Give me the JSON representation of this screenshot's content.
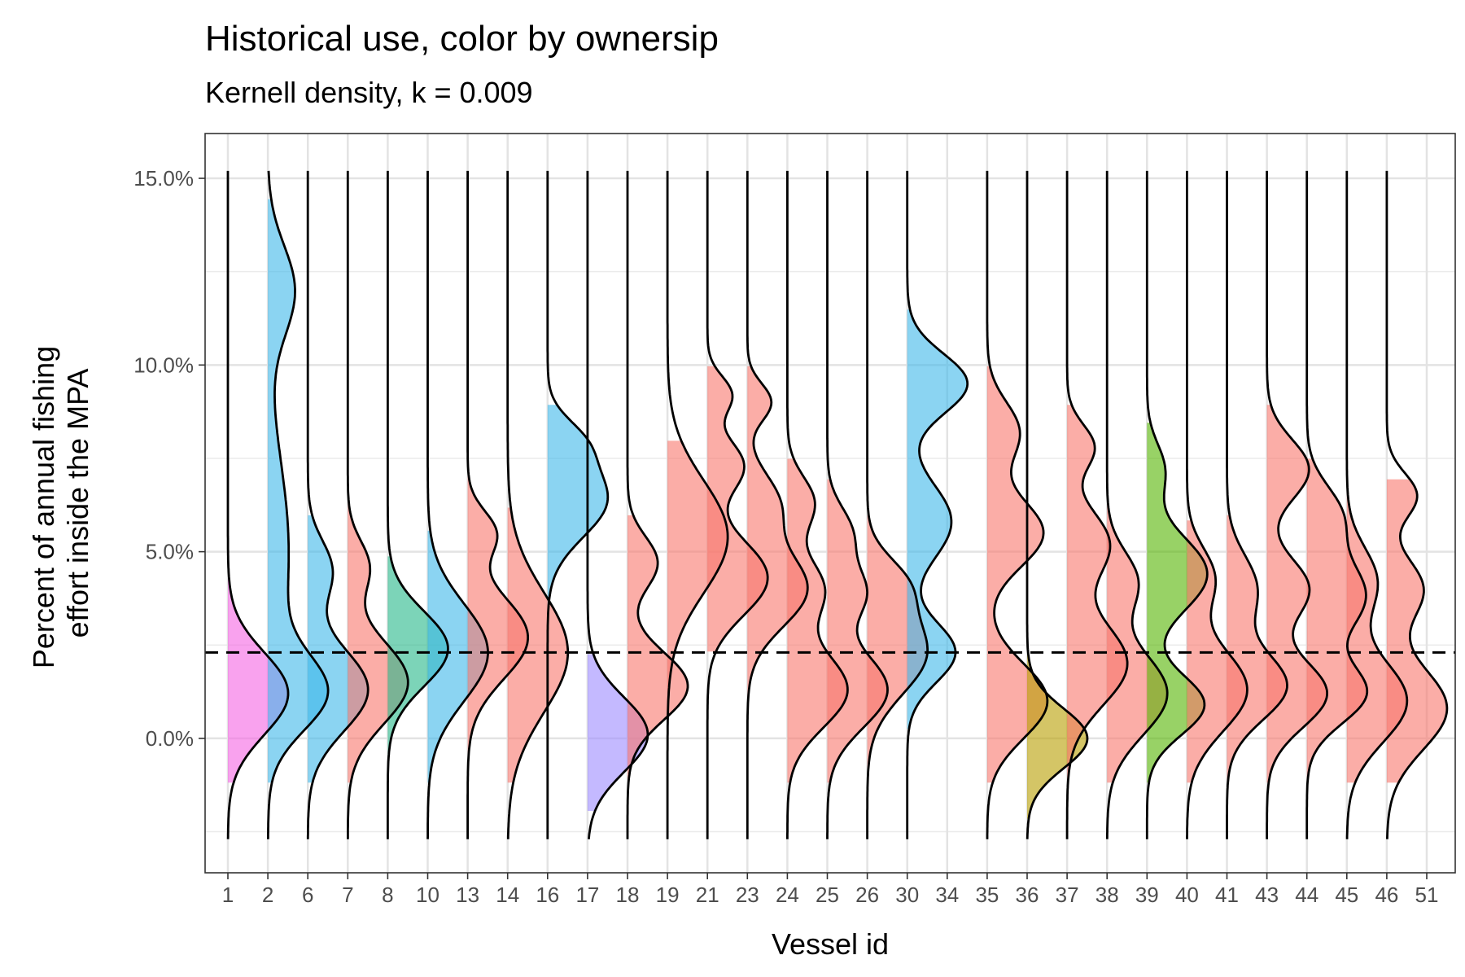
{
  "chart_data": {
    "type": "area",
    "title": "Historical use, color by ownersip",
    "subtitle": "Kernell density, k = 0.009",
    "xlabel": "Vessel id",
    "ylabel_lines": [
      "Percent of annual fishing",
      "effort inside the MPA"
    ],
    "categories": [
      "1",
      "2",
      "6",
      "7",
      "8",
      "10",
      "13",
      "14",
      "16",
      "17",
      "18",
      "19",
      "21",
      "23",
      "24",
      "25",
      "26",
      "30",
      "34",
      "35",
      "36",
      "37",
      "38",
      "39",
      "40",
      "41",
      "43",
      "44",
      "45",
      "46",
      "51"
    ],
    "y_ticks": [
      0,
      5,
      10,
      15
    ],
    "y_tick_labels": [
      "0.0%",
      "5.0%",
      "10.0%",
      "15.0%"
    ],
    "ylim": [
      -3.6,
      16.2
    ],
    "reference_line": {
      "y": 2.3,
      "style": "dashed"
    },
    "grid": true,
    "legend": "none",
    "colors": {
      "pink": "#F564E3",
      "blue": "#3DB7E9",
      "red": "#F8766D",
      "teal": "#25B889",
      "purple": "#9C8AFF",
      "olive": "#B79F00",
      "green": "#53B400"
    },
    "series": [
      {
        "vessel": "1",
        "color": "pink",
        "ymin": -2.7,
        "ymax": 15.2,
        "fill_min": -1.2,
        "fill_max": 4.7,
        "comps": [
          [
            1.2,
            1.1,
            1.0
          ]
        ]
      },
      {
        "vessel": "2",
        "color": "blue",
        "ymin": -2.7,
        "ymax": 15.2,
        "fill_min": -1.2,
        "fill_max": 14.5,
        "comps": [
          [
            1.2,
            1.0,
            0.9
          ],
          [
            5.0,
            2.5,
            0.35
          ],
          [
            12.0,
            1.2,
            0.45
          ]
        ]
      },
      {
        "vessel": "6",
        "color": "blue",
        "ymin": -2.7,
        "ymax": 15.2,
        "fill_min": -1.2,
        "fill_max": 6.0,
        "comps": [
          [
            1.3,
            1.1,
            1.0
          ],
          [
            4.5,
            0.8,
            0.4
          ]
        ]
      },
      {
        "vessel": "7",
        "color": "red",
        "ymin": -2.7,
        "ymax": 15.2,
        "fill_min": -1.2,
        "fill_max": 6.9,
        "comps": [
          [
            1.5,
            1.1,
            1.0
          ],
          [
            4.6,
            0.7,
            0.35
          ]
        ]
      },
      {
        "vessel": "8",
        "color": "teal",
        "ymin": -2.7,
        "ymax": 15.2,
        "fill_min": -1.2,
        "fill_max": 4.9,
        "comps": [
          [
            2.4,
            1.0,
            1.0
          ]
        ]
      },
      {
        "vessel": "10",
        "color": "blue",
        "ymin": -2.7,
        "ymax": 15.2,
        "fill_min": -1.2,
        "fill_max": 5.6,
        "comps": [
          [
            2.3,
            1.3,
            1.0
          ]
        ]
      },
      {
        "vessel": "13",
        "color": "red",
        "ymin": -2.7,
        "ymax": 15.2,
        "fill_min": -1.2,
        "fill_max": 7.5,
        "comps": [
          [
            2.7,
            1.1,
            1.0
          ],
          [
            5.5,
            0.6,
            0.45
          ]
        ]
      },
      {
        "vessel": "14",
        "color": "red",
        "ymin": -2.7,
        "ymax": 15.2,
        "fill_min": -1.2,
        "fill_max": 6.2,
        "comps": [
          [
            2.3,
            1.6,
            1.0
          ]
        ]
      },
      {
        "vessel": "16",
        "color": "blue",
        "ymin": -2.7,
        "ymax": 15.2,
        "fill_min": 2.3,
        "fill_max": 9.0,
        "comps": [
          [
            6.4,
            1.0,
            1.0
          ],
          [
            8.0,
            0.6,
            0.4
          ]
        ]
      },
      {
        "vessel": "17",
        "color": "purple",
        "ymin": -2.7,
        "ymax": 15.2,
        "fill_min": -2.0,
        "fill_max": 2.3,
        "comps": [
          [
            0.1,
            1.0,
            1.0
          ]
        ]
      },
      {
        "vessel": "18",
        "color": "red",
        "ymin": -2.7,
        "ymax": 15.2,
        "fill_min": -1.2,
        "fill_max": 6.0,
        "comps": [
          [
            1.4,
            0.9,
            1.0
          ],
          [
            4.7,
            0.7,
            0.5
          ]
        ]
      },
      {
        "vessel": "19",
        "color": "red",
        "ymin": -2.7,
        "ymax": 15.2,
        "fill_min": 0.5,
        "fill_max": 8.0,
        "comps": [
          [
            5.4,
            1.5,
            1.0
          ]
        ]
      },
      {
        "vessel": "21",
        "color": "red",
        "ymin": -2.7,
        "ymax": 15.2,
        "fill_min": 2.3,
        "fill_max": 10.0,
        "comps": [
          [
            4.3,
            1.0,
            1.0
          ],
          [
            7.3,
            0.7,
            0.6
          ],
          [
            9.2,
            0.5,
            0.4
          ]
        ]
      },
      {
        "vessel": "23",
        "color": "red",
        "ymin": -2.7,
        "ymax": 15.2,
        "fill_min": 0.5,
        "fill_max": 10.0,
        "comps": [
          [
            4.0,
            1.0,
            1.0
          ],
          [
            6.3,
            0.8,
            0.5
          ],
          [
            9.0,
            0.5,
            0.4
          ]
        ]
      },
      {
        "vessel": "24",
        "color": "red",
        "ymin": -2.7,
        "ymax": 15.2,
        "fill_min": -1.2,
        "fill_max": 7.5,
        "comps": [
          [
            1.3,
            1.0,
            1.0
          ],
          [
            4.0,
            0.8,
            0.6
          ],
          [
            6.3,
            0.7,
            0.45
          ]
        ]
      },
      {
        "vessel": "25",
        "color": "red",
        "ymin": -2.7,
        "ymax": 15.2,
        "fill_min": -1.2,
        "fill_max": 7.0,
        "comps": [
          [
            1.3,
            1.0,
            1.0
          ],
          [
            3.9,
            0.7,
            0.6
          ],
          [
            5.5,
            0.7,
            0.4
          ]
        ]
      },
      {
        "vessel": "26",
        "color": "red",
        "ymin": -2.7,
        "ymax": 15.2,
        "fill_min": -1.2,
        "fill_max": 6.0,
        "comps": [
          [
            2.3,
            1.1,
            1.0
          ],
          [
            4.2,
            0.7,
            0.5
          ]
        ]
      },
      {
        "vessel": "30",
        "color": "blue",
        "ymin": -2.7,
        "ymax": 15.2,
        "fill_min": 0.2,
        "fill_max": 11.5,
        "comps": [
          [
            2.3,
            0.8,
            0.6
          ],
          [
            5.8,
            1.0,
            0.55
          ],
          [
            9.5,
            0.8,
            0.75
          ]
        ]
      },
      {
        "vessel": "34",
        "color": "none",
        "ymin": null,
        "ymax": null,
        "fill_min": null,
        "fill_max": null,
        "comps": []
      },
      {
        "vessel": "35",
        "color": "red",
        "ymin": -2.7,
        "ymax": 15.2,
        "fill_min": -1.2,
        "fill_max": 10.0,
        "comps": [
          [
            1.0,
            1.0,
            0.75
          ],
          [
            5.5,
            0.9,
            0.7
          ],
          [
            8.2,
            0.8,
            0.4
          ]
        ]
      },
      {
        "vessel": "36",
        "color": "olive",
        "ymin": -2.7,
        "ymax": 15.2,
        "fill_min": -2.2,
        "fill_max": 2.3,
        "comps": [
          [
            0.0,
            0.8,
            1.0
          ]
        ]
      },
      {
        "vessel": "37",
        "color": "red",
        "ymin": -2.7,
        "ymax": 15.2,
        "fill_min": -1.2,
        "fill_max": 9.0,
        "comps": [
          [
            2.0,
            1.1,
            1.0
          ],
          [
            5.2,
            0.9,
            0.7
          ],
          [
            7.8,
            0.6,
            0.45
          ]
        ]
      },
      {
        "vessel": "38",
        "color": "red",
        "ymin": -2.7,
        "ymax": 15.2,
        "fill_min": -1.2,
        "fill_max": 6.5,
        "comps": [
          [
            1.2,
            1.1,
            1.0
          ],
          [
            4.2,
            0.8,
            0.5
          ]
        ]
      },
      {
        "vessel": "39",
        "color": "green",
        "ymin": -2.7,
        "ymax": 15.2,
        "fill_min": -1.2,
        "fill_max": 8.5,
        "comps": [
          [
            0.9,
            0.8,
            1.0
          ],
          [
            4.4,
            1.0,
            1.05
          ],
          [
            7.2,
            0.7,
            0.3
          ]
        ]
      },
      {
        "vessel": "40",
        "color": "red",
        "ymin": -2.7,
        "ymax": 15.2,
        "fill_min": -1.2,
        "fill_max": 5.9,
        "comps": [
          [
            1.3,
            1.1,
            1.0
          ],
          [
            4.3,
            0.8,
            0.45
          ]
        ]
      },
      {
        "vessel": "41",
        "color": "red",
        "ymin": -2.7,
        "ymax": 15.2,
        "fill_min": -1.2,
        "fill_max": 6.0,
        "comps": [
          [
            1.4,
            0.9,
            1.0
          ],
          [
            4.0,
            0.9,
            0.5
          ]
        ]
      },
      {
        "vessel": "43",
        "color": "red",
        "ymin": -2.7,
        "ymax": 15.2,
        "fill_min": -1.2,
        "fill_max": 9.0,
        "comps": [
          [
            1.2,
            0.9,
            1.0
          ],
          [
            4.0,
            0.8,
            0.7
          ],
          [
            7.2,
            0.8,
            0.7
          ]
        ]
      },
      {
        "vessel": "44",
        "color": "red",
        "ymin": -2.7,
        "ymax": 15.2,
        "fill_min": -1.2,
        "fill_max": 7.5,
        "comps": [
          [
            1.2,
            0.8,
            1.0
          ],
          [
            3.8,
            1.0,
            1.0
          ],
          [
            6.0,
            0.8,
            0.55
          ]
        ]
      },
      {
        "vessel": "45",
        "color": "red",
        "ymin": -2.7,
        "ymax": 15.2,
        "fill_min": -1.2,
        "fill_max": 7.0,
        "comps": [
          [
            1.0,
            1.1,
            1.0
          ],
          [
            4.2,
            0.9,
            0.5
          ]
        ]
      },
      {
        "vessel": "46",
        "color": "red",
        "ymin": -2.7,
        "ymax": 15.2,
        "fill_min": -1.2,
        "fill_max": 7.0,
        "comps": [
          [
            0.8,
            1.1,
            1.0
          ],
          [
            4.0,
            0.8,
            0.6
          ],
          [
            6.5,
            0.6,
            0.5
          ]
        ]
      },
      {
        "vessel": "51",
        "color": "none",
        "ymin": null,
        "ymax": null,
        "fill_min": null,
        "fill_max": null,
        "comps": []
      }
    ]
  }
}
